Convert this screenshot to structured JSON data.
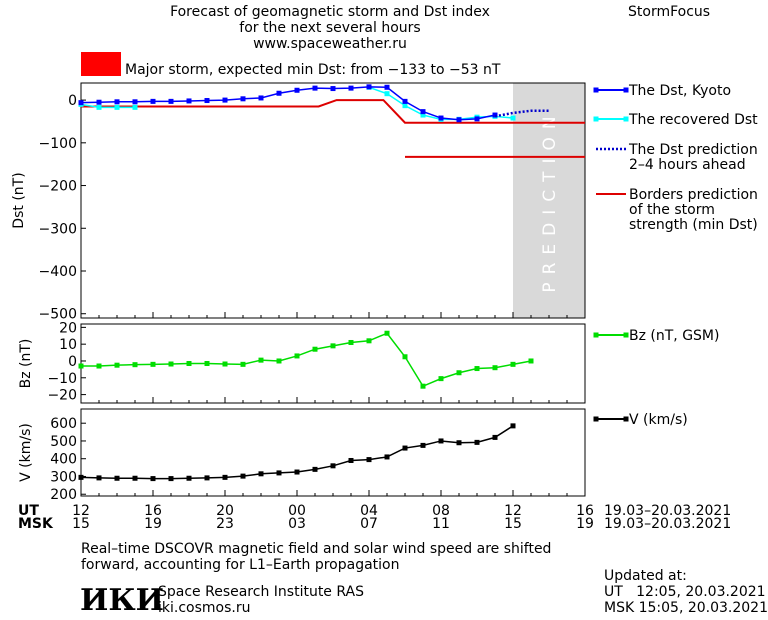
{
  "header": {
    "title_line1": "Forecast of geomagnetic storm and Dst index",
    "title_line2": "for the next several hours",
    "url": "www.spaceweather.ru",
    "brand": "StormFocus"
  },
  "storm": {
    "indicator_color": "#ff0000",
    "text": "Major storm, expected min Dst: from −133 to −53 nT"
  },
  "legend": {
    "dst": "The Dst, Kyoto",
    "recovered": "The recovered Dst",
    "prediction_l1": "The Dst prediction",
    "prediction_l2": "2–4 hours ahead",
    "borders_l1": "Borders prediction",
    "borders_l2": "of the storm",
    "borders_l3": "strength (min Dst)",
    "bz": "Bz (nT, GSM)",
    "v": "V (km/s)"
  },
  "prediction_label": "PREDICTION",
  "time_axis": {
    "ut_label": "UT",
    "msk_label": "MSK",
    "ut_ticks": [
      "12",
      "16",
      "20",
      "00",
      "04",
      "08",
      "12",
      "16"
    ],
    "msk_ticks": [
      "15",
      "19",
      "23",
      "03",
      "07",
      "11",
      "15",
      "19"
    ],
    "ut_range": "19.03–20.03.2021",
    "msk_range": "19.03–20.03.2021"
  },
  "footer": {
    "note_l1": "Real–time DSCOVR magnetic field and solar wind speed are shifted",
    "note_l2": "forward, accounting for L1–Earth propagation",
    "logo": "ИКИ",
    "institute": "Space Research Institute RAS",
    "site": "iki.cosmos.ru",
    "updated_label": "Updated at:",
    "updated_ut": "UT   12:05, 20.03.2021",
    "updated_msk": "MSK 15:05, 20.03.2021"
  },
  "colors": {
    "dst": "#0000ff",
    "recovered": "#00ffff",
    "prediction": "#0000cc",
    "borders": "#dd0000",
    "bz": "#00dd00",
    "v": "#000000",
    "prediction_band": "#d9d9d9"
  },
  "chart_data": [
    {
      "type": "line",
      "name": "Dst",
      "xlabel": "",
      "ylabel": "Dst (nT)",
      "x_unit": "hours since 12 UT 19.03.2021",
      "xlim": [
        0,
        28
      ],
      "ylim": [
        -510,
        40
      ],
      "y_ticks": [
        0,
        -100,
        -200,
        -300,
        -400,
        -500
      ],
      "prediction_start": 24,
      "series": [
        {
          "name": "The Dst, Kyoto",
          "style": "line-square",
          "x": [
            0,
            1,
            2,
            3,
            4,
            5,
            6,
            7,
            8,
            9,
            10,
            11,
            12,
            13,
            14,
            15,
            16,
            17,
            18,
            19,
            20,
            21,
            22,
            23
          ],
          "y": [
            -6,
            -5,
            -4,
            -4,
            -3,
            -3,
            -2,
            -1,
            0,
            3,
            5,
            16,
            23,
            28,
            27,
            28,
            31,
            30,
            -3,
            -27,
            -42,
            -46,
            -44,
            -35
          ]
        },
        {
          "name": "The recovered Dst",
          "style": "line-square",
          "x": [
            0,
            1,
            2,
            3,
            16,
            17,
            18,
            19,
            20,
            21,
            22,
            23,
            24
          ],
          "y": [
            -10,
            -17,
            -17,
            -17,
            30,
            15,
            -13,
            -35,
            -45,
            -45,
            -40,
            -38,
            -42
          ]
        },
        {
          "name": "The Dst prediction 2–4 hours ahead",
          "style": "dotted",
          "x": [
            23,
            24,
            25,
            26
          ],
          "y": [
            -38,
            -30,
            -25,
            -25
          ]
        },
        {
          "name": "Borders prediction of the storm strength (min Dst)",
          "style": "segments",
          "segments": [
            [
              [
                0,
                -15
              ],
              [
                13.2,
                -15
              ],
              [
                14.2,
                0
              ],
              [
                16.8,
                0
              ],
              [
                18,
                -53
              ],
              [
                28,
                -53
              ]
            ],
            [
              [
                18,
                -133
              ],
              [
                28,
                -133
              ]
            ]
          ]
        }
      ]
    },
    {
      "type": "line",
      "name": "Bz",
      "ylabel": "Bz (nT)",
      "xlim": [
        0,
        28
      ],
      "ylim": [
        -25,
        22
      ],
      "y_ticks": [
        20,
        10,
        0,
        -10,
        -20
      ],
      "series": [
        {
          "name": "Bz (nT, GSM)",
          "x": [
            0,
            1,
            2,
            3,
            4,
            5,
            6,
            7,
            8,
            9,
            10,
            11,
            12,
            13,
            14,
            15,
            16,
            17,
            18,
            19,
            20,
            21,
            22,
            23,
            24,
            25
          ],
          "y": [
            -3,
            -3,
            -2.5,
            -2.2,
            -2,
            -1.8,
            -1.5,
            -1.5,
            -1.8,
            -2,
            0.5,
            0,
            3,
            7,
            9,
            11,
            12,
            16.5,
            2.5,
            -15,
            -10.5,
            -7,
            -4.5,
            -4,
            -2,
            0
          ]
        }
      ]
    },
    {
      "type": "line",
      "name": "V",
      "ylabel": "V (km/s)",
      "xlim": [
        0,
        28
      ],
      "ylim": [
        190,
        680
      ],
      "y_ticks": [
        600,
        500,
        400,
        300,
        200
      ],
      "series": [
        {
          "name": "V (km/s)",
          "x": [
            0,
            1,
            2,
            3,
            4,
            5,
            6,
            7,
            8,
            9,
            10,
            11,
            12,
            13,
            14,
            15,
            16,
            17,
            18,
            19,
            20,
            21,
            22,
            23,
            24,
            25
          ],
          "y": [
            295,
            292,
            290,
            290,
            288,
            288,
            290,
            292,
            295,
            302,
            315,
            320,
            325,
            340,
            360,
            390,
            395,
            410,
            460,
            475,
            500,
            490,
            492,
            520,
            585,
            null
          ]
        }
      ]
    }
  ]
}
